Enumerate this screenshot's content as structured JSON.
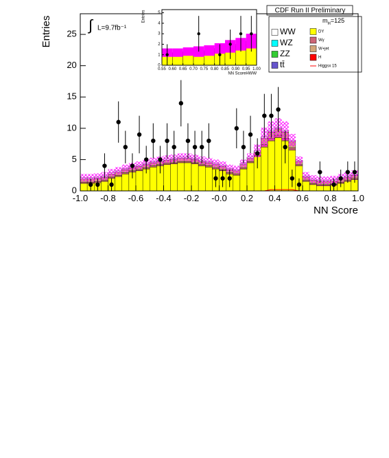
{
  "chart_data": {
    "type": "histogram",
    "title": "CDF Run II Preliminary",
    "x_label": "NN Score",
    "y_label": "Entries",
    "integral_sign": "∫",
    "luminosity": "L=9.7fb⁻¹",
    "mass_label": [
      "m",
      "H",
      "=125"
    ],
    "xlim": [
      -1.0,
      1.0
    ],
    "ylim": [
      0,
      28.3
    ],
    "xticks": [
      {
        "value": -1.0,
        "label": "-1.0"
      },
      {
        "value": -0.8,
        "label": "-0.8"
      },
      {
        "value": -0.6,
        "label": "-0.6"
      },
      {
        "value": -0.4,
        "label": "-0.4"
      },
      {
        "value": -0.2,
        "label": "-0.2"
      },
      {
        "value": 0,
        "label": "-0.0"
      },
      {
        "value": 0.2,
        "label": "0.2"
      },
      {
        "value": 0.4,
        "label": "0.4"
      },
      {
        "value": 0.6,
        "label": "0.6"
      },
      {
        "value": 0.8,
        "label": "0.8"
      },
      {
        "value": 1.0,
        "label": "1.0"
      }
    ],
    "yticks": [
      0,
      5,
      10,
      15,
      20,
      25
    ],
    "bins": [
      -1.0,
      -0.95,
      -0.9,
      -0.85,
      -0.8,
      -0.75,
      -0.7,
      -0.65,
      -0.6,
      -0.55,
      -0.5,
      -0.45,
      -0.4,
      -0.35,
      -0.3,
      -0.25,
      -0.2,
      -0.15,
      -0.1,
      -0.05,
      0,
      0.05,
      0.1,
      0.15,
      0.2,
      0.25,
      0.3,
      0.35,
      0.4,
      0.45,
      0.5,
      0.55,
      0.6,
      0.65,
      0.7,
      0.75,
      0.8,
      0.85,
      0.9,
      0.95,
      1.0
    ],
    "series": [
      {
        "name": "DY",
        "color": "#ffff00",
        "values": [
          1.2,
          1.2,
          1.3,
          1.5,
          2.0,
          2.3,
          2.7,
          3.0,
          3.2,
          3.5,
          3.8,
          4.0,
          4.2,
          4.3,
          4.5,
          4.5,
          4.3,
          4.0,
          3.8,
          3.5,
          3.2,
          2.7,
          2.5,
          3.5,
          4.5,
          5.5,
          7.0,
          8.0,
          8.5,
          8.0,
          6.5,
          4.0,
          1.5,
          1.0,
          0.8,
          0.8,
          0.9,
          1.2,
          1.5,
          1.8
        ]
      },
      {
        "name": "Wγ",
        "color": "#cc6677",
        "values": [
          0.2,
          0.2,
          0.2,
          0.2,
          0.2,
          0.2,
          0.2,
          0.2,
          0.2,
          0.2,
          0.2,
          0.2,
          0.2,
          0.2,
          0.2,
          0.2,
          0.2,
          0.2,
          0.2,
          0.2,
          0.2,
          0.2,
          0.2,
          0.2,
          0.2,
          0.2,
          0.4,
          0.4,
          0.4,
          0.4,
          0.4,
          0.2,
          0.2,
          0.2,
          0.2,
          0.2,
          0.2,
          0.2,
          0.2,
          0.2
        ]
      },
      {
        "name": "W+jet",
        "color": "#d2a679",
        "values": [
          0.5,
          0.5,
          0.5,
          0.5,
          0.5,
          0.5,
          0.5,
          0.5,
          0.5,
          0.5,
          0.5,
          0.5,
          0.5,
          0.5,
          0.5,
          0.5,
          0.5,
          0.5,
          0.5,
          0.5,
          0.5,
          0.5,
          0.5,
          0.5,
          0.5,
          0.5,
          1.0,
          1.0,
          1.0,
          1.0,
          1.0,
          0.5,
          0.5,
          0.5,
          0.5,
          0.5,
          0.5,
          0.5,
          0.5,
          0.5
        ]
      },
      {
        "name": "WW",
        "color": "#ffffff",
        "values": [
          0.2,
          0.2,
          0.2,
          0.2,
          0.2,
          0.2,
          0.2,
          0.2,
          0.2,
          0.2,
          0.2,
          0.2,
          0.2,
          0.2,
          0.2,
          0.2,
          0.2,
          0.2,
          0.2,
          0.2,
          0.2,
          0.2,
          0.2,
          0.2,
          0.2,
          0.2,
          0.2,
          0.2,
          0.2,
          0.2,
          0.2,
          0.2,
          0.2,
          0.2,
          0.2,
          0.2,
          0.2,
          0.2,
          0.2,
          0.2
        ]
      },
      {
        "name": "WZ",
        "color": "#00ffff",
        "values": [
          0,
          0,
          0,
          0,
          0,
          0,
          0,
          0,
          0,
          0,
          0,
          0,
          0,
          0,
          0,
          0,
          0,
          0,
          0,
          0,
          0,
          0,
          0,
          0,
          0,
          0,
          0,
          0,
          0,
          0,
          0,
          0,
          0,
          0,
          0,
          0,
          0,
          0,
          0,
          0
        ]
      },
      {
        "name": "ZZ",
        "color": "#33cc33",
        "values": [
          0,
          0,
          0,
          0,
          0,
          0,
          0,
          0,
          0,
          0,
          0,
          0,
          0,
          0,
          0,
          0,
          0,
          0,
          0,
          0,
          0,
          0,
          0,
          0,
          0,
          0,
          0,
          0,
          0,
          0,
          0,
          0,
          0,
          0,
          0,
          0,
          0,
          0,
          0,
          0
        ]
      },
      {
        "name": "tt̄",
        "color": "#6655cc",
        "values": [
          0,
          0,
          0,
          0,
          0,
          0,
          0,
          0,
          0,
          0,
          0,
          0,
          0,
          0,
          0,
          0,
          0,
          0,
          0,
          0,
          0,
          0,
          0,
          0,
          0,
          0,
          0,
          0,
          0,
          0,
          0,
          0,
          0,
          0,
          0,
          0,
          0,
          0,
          0,
          0
        ]
      },
      {
        "name": "H",
        "color": "#ff0000",
        "values": [
          0,
          0,
          0,
          0,
          0,
          0,
          0,
          0,
          0,
          0,
          0,
          0,
          0,
          0,
          0,
          0,
          0,
          0,
          0,
          0,
          0,
          0,
          0,
          0,
          0,
          0,
          0,
          0,
          0,
          0,
          0,
          0,
          0,
          0,
          0,
          0,
          0,
          0,
          0,
          0
        ]
      },
      {
        "name": "Higgsx 15",
        "color": "#ff0000",
        "style": "line",
        "values": [
          0,
          0,
          0,
          0,
          0,
          0,
          0,
          0,
          0,
          0,
          0,
          0,
          0,
          0,
          0,
          0,
          0,
          0,
          0,
          0,
          0,
          0,
          0,
          0,
          0,
          0,
          0,
          0.2,
          0.2,
          0.2,
          0.2,
          0,
          0,
          0,
          0,
          0,
          0,
          0,
          0,
          0
        ]
      }
    ],
    "uncertainty": [
      0.6,
      0.6,
      0.6,
      0.6,
      0.6,
      0.6,
      0.6,
      0.6,
      0.6,
      0.6,
      0.6,
      0.6,
      0.6,
      0.6,
      0.6,
      0.6,
      0.6,
      0.6,
      0.6,
      0.6,
      0.6,
      0.6,
      0.6,
      0.6,
      0.6,
      1.0,
      1.5,
      1.5,
      1.5,
      1.5,
      1.0,
      0.6,
      0.6,
      0.6,
      0.6,
      0.6,
      0.6,
      0.6,
      0.6,
      0.6
    ],
    "uncertainty_color": "#ff00ff",
    "observed": {
      "values": [
        null,
        1,
        1,
        4,
        1,
        11,
        7,
        4,
        9,
        5,
        8,
        5,
        8,
        7,
        14,
        8,
        7,
        7,
        8,
        2,
        2,
        2,
        10,
        7,
        9,
        6,
        12,
        12,
        13,
        7,
        2,
        1,
        null,
        null,
        3,
        null,
        1,
        2,
        3,
        3
      ],
      "errors": [
        null,
        1,
        1,
        2,
        1,
        3.3,
        2.6,
        2,
        3,
        2.2,
        2.8,
        2.2,
        2.8,
        2.6,
        3.7,
        2.8,
        2.6,
        2.6,
        2.8,
        1.4,
        1.4,
        1.4,
        3.2,
        2.6,
        3,
        2.4,
        3.5,
        3.5,
        3.6,
        2.6,
        1.4,
        1,
        null,
        null,
        1.7,
        null,
        1,
        1.4,
        1.7,
        1.7
      ]
    },
    "inset": {
      "x_label": "NN ScoreHWW",
      "y_label": "Entries",
      "xlim": [
        0.55,
        1.0
      ],
      "ylim": [
        0,
        5.3
      ],
      "xticks": [
        {
          "value": 0.55,
          "label": "0.55"
        },
        {
          "value": 0.6,
          "label": "0.60"
        },
        {
          "value": 0.65,
          "label": "0.65"
        },
        {
          "value": 0.7,
          "label": "0.70"
        },
        {
          "value": 0.75,
          "label": "0.75"
        },
        {
          "value": 0.8,
          "label": "0.80"
        },
        {
          "value": 0.85,
          "label": "0.85"
        },
        {
          "value": 0.9,
          "label": "0.90"
        },
        {
          "value": 0.95,
          "label": "0.95"
        },
        {
          "value": 1.0,
          "label": "1.00"
        }
      ],
      "yticks": [
        0,
        1,
        2,
        3,
        4,
        5
      ],
      "bins": [
        0.55,
        0.6,
        0.65,
        0.7,
        0.75,
        0.8,
        0.85,
        0.9,
        0.95,
        1.0
      ],
      "stack": [
        {
          "color": "#ffff00",
          "values": [
            0.9,
            0.9,
            1.0,
            1.0,
            1.1,
            1.3,
            1.5,
            1.7,
            2.0
          ]
        },
        {
          "color": "#d2a679",
          "values": [
            0.3,
            0.3,
            0.3,
            0.3,
            0.3,
            0.3,
            0.3,
            0.3,
            0.3
          ]
        }
      ],
      "uncertainty": [
        0.4,
        0.4,
        0.4,
        0.5,
        0.5,
        0.5,
        0.6,
        0.6,
        0.7
      ],
      "observed": {
        "values": [
          1,
          null,
          null,
          3,
          null,
          1,
          2,
          3,
          3
        ],
        "errors": [
          1,
          null,
          null,
          1.7,
          null,
          1,
          1.4,
          1.7,
          1.7
        ]
      }
    }
  }
}
